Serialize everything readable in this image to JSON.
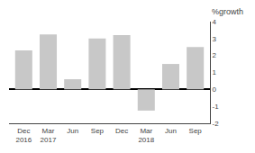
{
  "chart_data": {
    "type": "bar",
    "categories": [
      "Dec\n2016",
      "Mar\n2017",
      "Jun",
      "Sep",
      "Dec",
      "Mar\n2018",
      "Jun",
      "Sep"
    ],
    "values": [
      2.3,
      3.25,
      0.6,
      3.0,
      3.2,
      -1.25,
      1.5,
      2.5
    ],
    "color": "#c8c8c8",
    "ylabel": "%growth",
    "ylim": [
      -2,
      4
    ],
    "yticks": [
      -2,
      -1,
      0,
      1,
      2,
      3,
      4
    ],
    "grid": false
  }
}
